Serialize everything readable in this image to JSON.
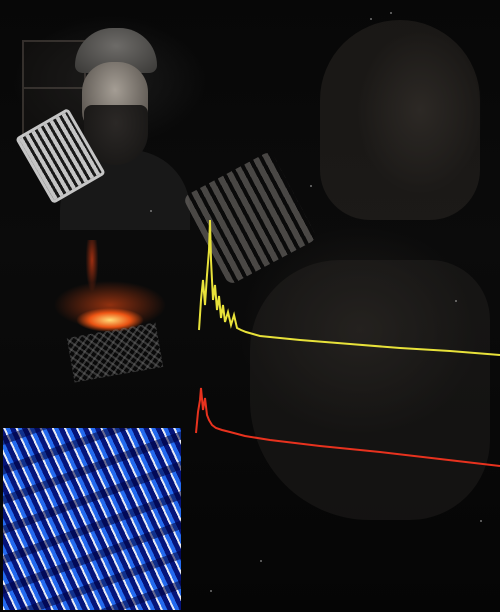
{
  "scene": {
    "description_kind": "photo of a dark monitor showing spectrum traces with a reflected person",
    "colors": {
      "trace_upper": "#e8e23a",
      "trace_lower": "#e8321e",
      "waterfall_blue": "#1f5cff",
      "fire_glow": "#ff6a1a"
    }
  }
}
